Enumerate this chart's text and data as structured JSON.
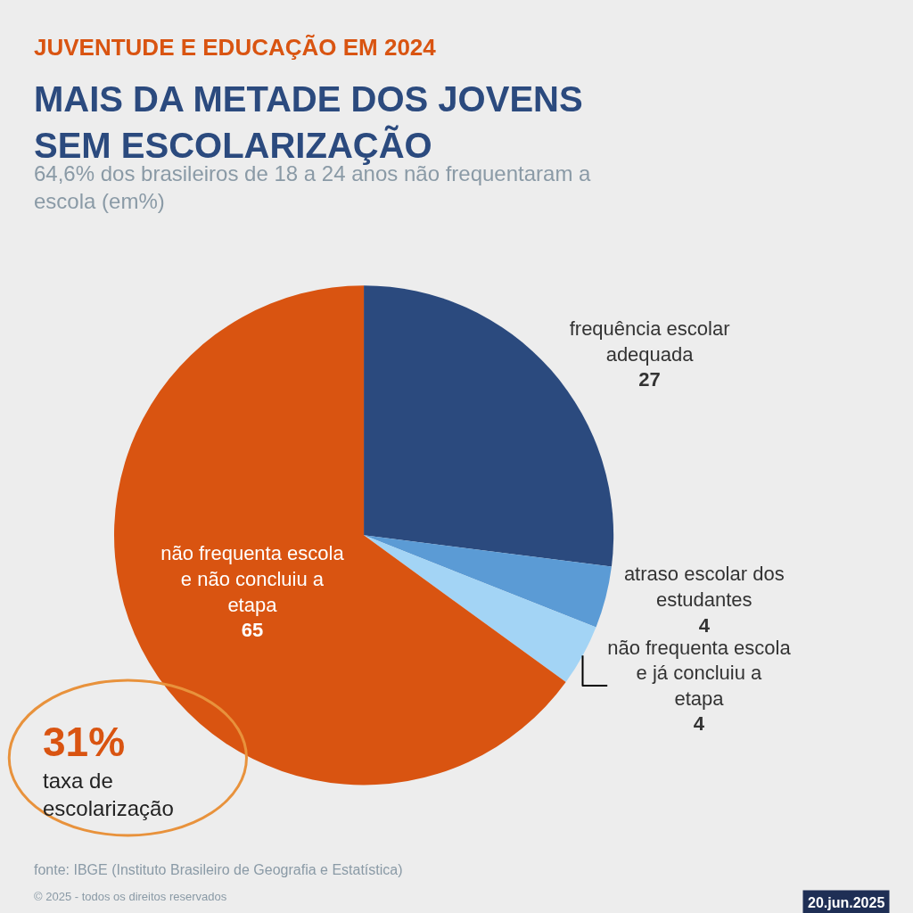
{
  "chart_data": {
    "type": "pie",
    "title": "MAIS DA METADE DOS JOVENS SEM ESCOLARIZAÇÃO",
    "subtitle": "64,6% dos brasileiros de 18 a 24 anos não frequentaram a escola (em%)",
    "categories": [
      "frequência escolar adequada",
      "atraso escolar dos estudantes",
      "não frequenta escola e já concluiu a etapa",
      "não frequenta escola e não concluiu a etapa"
    ],
    "values": [
      27,
      4,
      4,
      65
    ],
    "colors": [
      "#2b4a7e",
      "#5b9bd5",
      "#a3d4f5",
      "#d95411"
    ],
    "data_labels": true,
    "legend": false,
    "annotations": [
      "JUVENTUDE E EDUCAÇÃO EM 2024",
      "31%",
      "taxa de escolarização",
      "fonte: IBGE (Instituto Brasileiro de Geografia e Estatística)",
      "© 2025 - todos os direitos reservados",
      "20.jun.2025"
    ]
  }
}
